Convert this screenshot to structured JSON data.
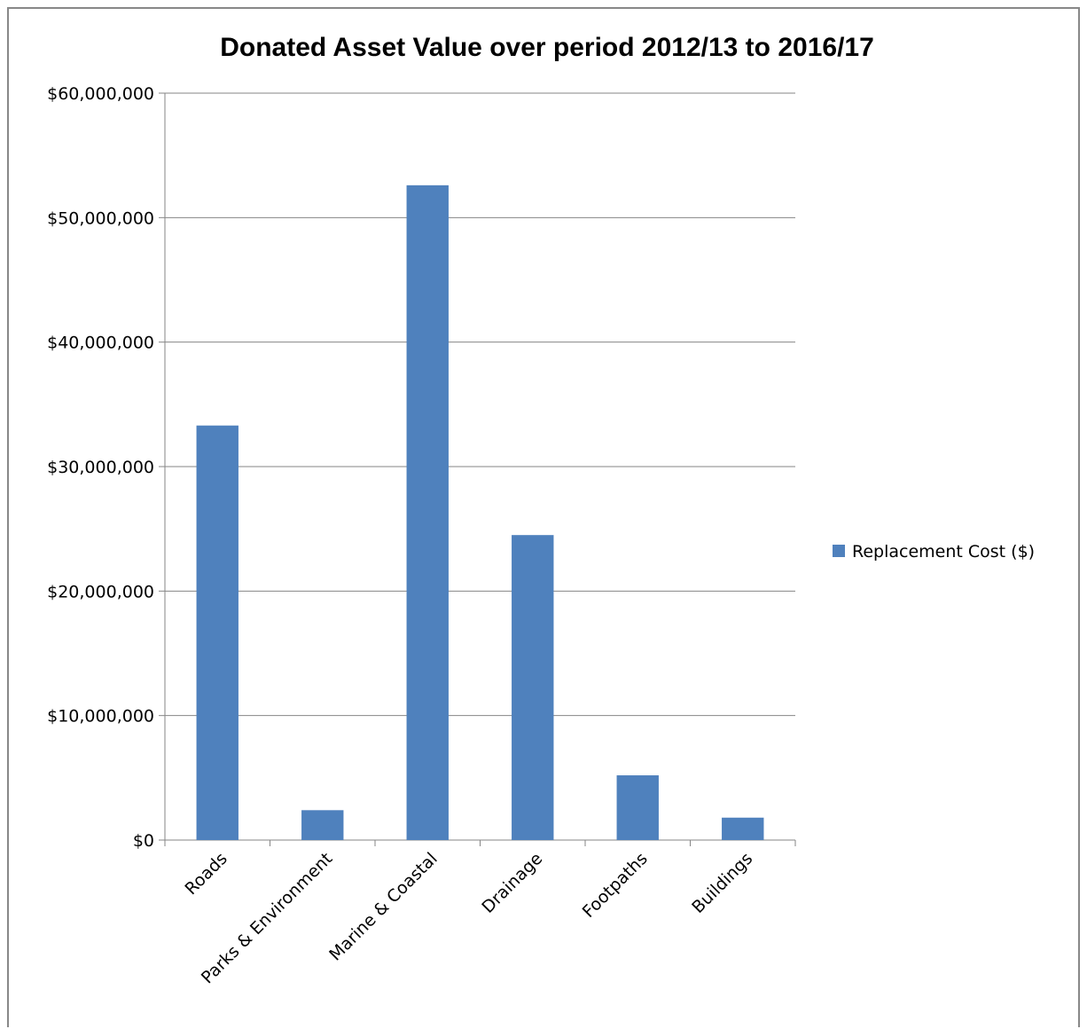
{
  "chart_data": {
    "type": "bar",
    "title": "Donated Asset Value over period 2012/13 to 2016/17",
    "xlabel": "",
    "ylabel": "",
    "categories": [
      "Roads",
      "Parks & Environment",
      "Marine & Coastal",
      "Drainage",
      "Footpaths",
      "Buildings"
    ],
    "series": [
      {
        "name": "Replacement Cost ($)",
        "values": [
          33300000,
          2400000,
          52600000,
          24500000,
          5200000,
          1800000
        ],
        "color": "#4F81BD"
      }
    ],
    "ylim": [
      0,
      60000000
    ],
    "yticks": [
      "$0",
      "$10,000,000",
      "$20,000,000",
      "$30,000,000",
      "$40,000,000",
      "$50,000,000",
      "$60,000,000"
    ],
    "grid": true,
    "legend_position": "right"
  }
}
